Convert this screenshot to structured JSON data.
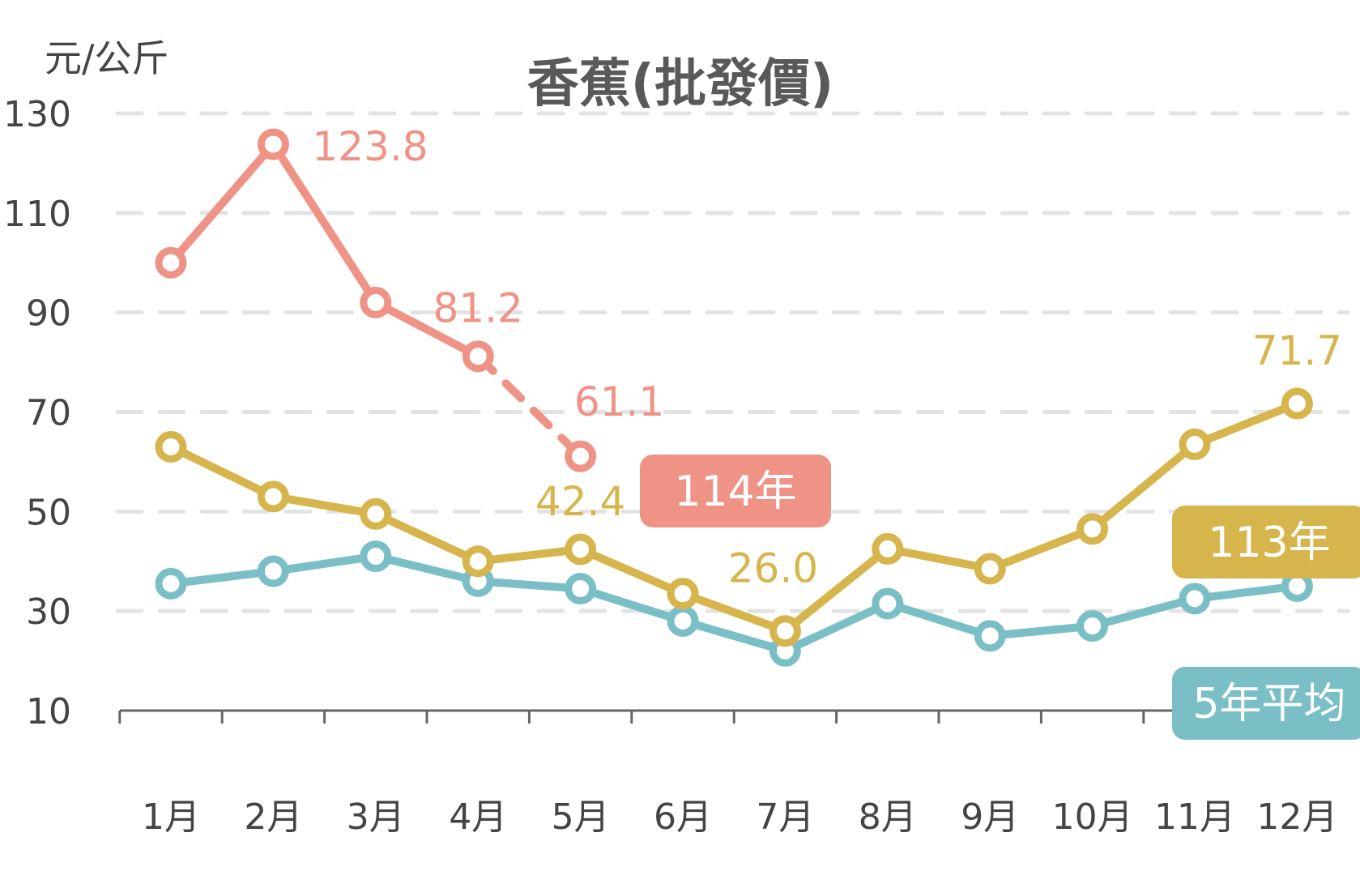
{
  "chart_data": {
    "type": "line",
    "title": "香蕉(批發價)",
    "ylabel": "元/公斤",
    "xlabel": "",
    "ylim": [
      10,
      130
    ],
    "yticks": [
      "130",
      "110",
      "90",
      "70",
      "50",
      "30",
      "10"
    ],
    "categories": [
      "1月",
      "2月",
      "3月",
      "4月",
      "5月",
      "6月",
      "7月",
      "8月",
      "9月",
      "10月",
      "11月",
      "12月"
    ],
    "grid": true,
    "series": [
      {
        "name": "114年",
        "color": "#EE9386",
        "values": [
          100.0,
          123.8,
          92.0,
          81.2,
          61.1,
          null,
          null,
          null,
          null,
          null,
          null,
          null
        ],
        "dashed_from_index": 3,
        "data_labels": [
          null,
          "123.8",
          null,
          "81.2",
          "61.1",
          null,
          null,
          null,
          null,
          null,
          null,
          null
        ]
      },
      {
        "name": "113年",
        "color": "#D6B54C",
        "values": [
          63.0,
          53.0,
          49.5,
          40.0,
          42.4,
          33.5,
          26.0,
          42.5,
          38.5,
          46.5,
          63.5,
          71.7
        ],
        "data_labels": [
          null,
          null,
          null,
          null,
          "42.4",
          null,
          "26.0",
          null,
          null,
          null,
          null,
          "71.7"
        ]
      },
      {
        "name": "5年平均",
        "color": "#7BBFC6",
        "values": [
          35.5,
          38.0,
          41.0,
          36.0,
          34.5,
          28.0,
          22.0,
          31.5,
          25.0,
          27.0,
          32.5,
          35.0
        ],
        "data_labels": [
          null,
          null,
          null,
          null,
          null,
          null,
          null,
          null,
          null,
          null,
          null,
          null
        ]
      }
    ]
  }
}
